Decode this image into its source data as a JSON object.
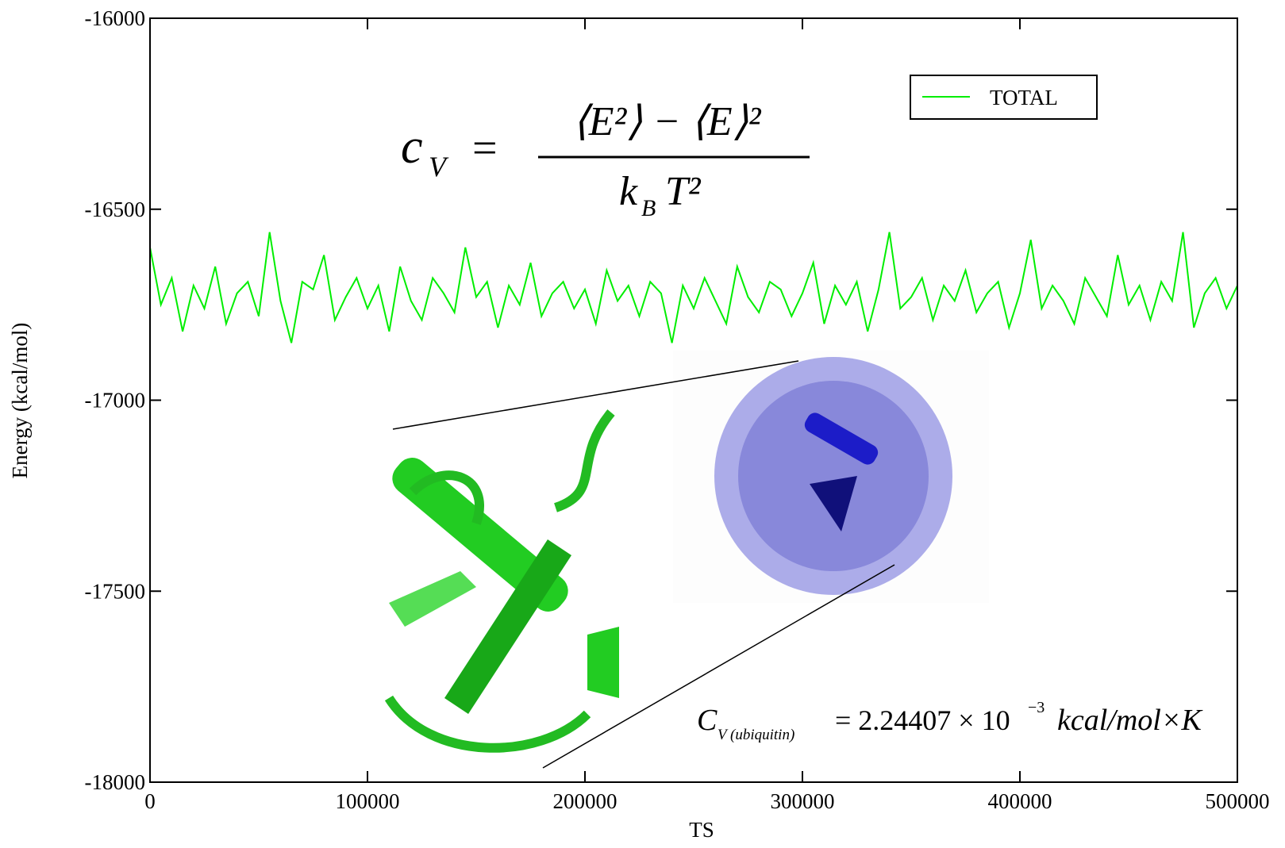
{
  "chart_data": {
    "type": "line",
    "x_label": "TS",
    "y_label": "Energy (kcal/mol)",
    "x": [
      0,
      5000,
      10000,
      15000,
      20000,
      25000,
      30000,
      35000,
      40000,
      45000,
      50000,
      55000,
      60000,
      65000,
      70000,
      75000,
      80000,
      85000,
      90000,
      95000,
      100000,
      105000,
      110000,
      115000,
      120000,
      125000,
      130000,
      135000,
      140000,
      145000,
      150000,
      155000,
      160000,
      165000,
      170000,
      175000,
      180000,
      185000,
      190000,
      195000,
      200000,
      205000,
      210000,
      215000,
      220000,
      225000,
      230000,
      235000,
      240000,
      245000,
      250000,
      255000,
      260000,
      265000,
      270000,
      275000,
      280000,
      285000,
      290000,
      295000,
      300000,
      305000,
      310000,
      315000,
      320000,
      325000,
      330000,
      335000,
      340000,
      345000,
      350000,
      355000,
      360000,
      365000,
      370000,
      375000,
      380000,
      385000,
      390000,
      395000,
      400000,
      405000,
      410000,
      415000,
      420000,
      425000,
      430000,
      435000,
      440000,
      445000,
      450000,
      455000,
      460000,
      465000,
      470000,
      475000,
      480000,
      485000,
      490000,
      495000,
      500000
    ],
    "series": [
      {
        "name": "TOTAL",
        "color": "#00ee00",
        "values": [
          -16600,
          -16750,
          -16680,
          -16820,
          -16700,
          -16760,
          -16650,
          -16800,
          -16720,
          -16690,
          -16780,
          -16560,
          -16740,
          -16850,
          -16690,
          -16710,
          -16620,
          -16790,
          -16730,
          -16680,
          -16760,
          -16700,
          -16820,
          -16650,
          -16740,
          -16790,
          -16680,
          -16720,
          -16770,
          -16600,
          -16730,
          -16690,
          -16810,
          -16700,
          -16750,
          -16640,
          -16780,
          -16720,
          -16690,
          -16760,
          -16710,
          -16800,
          -16660,
          -16740,
          -16700,
          -16780,
          -16690,
          -16720,
          -16850,
          -16700,
          -16760,
          -16680,
          -16740,
          -16800,
          -16650,
          -16730,
          -16770,
          -16690,
          -16710,
          -16780,
          -16720,
          -16640,
          -16800,
          -16700,
          -16750,
          -16690,
          -16820,
          -16710,
          -16560,
          -16760,
          -16730,
          -16680,
          -16790,
          -16700,
          -16740,
          -16660,
          -16770,
          -16720,
          -16690,
          -16810,
          -16720,
          -16580,
          -16760,
          -16700,
          -16740,
          -16800,
          -16680,
          -16730,
          -16780,
          -16620,
          -16750,
          -16700,
          -16790,
          -16690,
          -16740,
          -16560,
          -16810,
          -16720,
          -16680,
          -16760,
          -16700
        ]
      }
    ],
    "xlim": [
      0,
      500000
    ],
    "xticks": [
      0,
      100000,
      200000,
      300000,
      400000,
      500000
    ],
    "ylim": [
      -18000,
      -16000
    ],
    "yticks": [
      -16000,
      -16500,
      -17000,
      -17500,
      -18000
    ],
    "legend": "upper right",
    "formula": {
      "lhs": "c",
      "lhs_sub": "V",
      "equals": "=",
      "numerator": "⟨E²⟩ − ⟨E⟩²",
      "denominator": "k",
      "denominator_sub": "B",
      "denominator_tail": "T²"
    },
    "result": {
      "symbol": "C",
      "symbol_sub": "V (ubiquitin)",
      "value": "= 2.24407 × 10",
      "exponent": "−3",
      "unit": "kcal/mol×K"
    }
  }
}
